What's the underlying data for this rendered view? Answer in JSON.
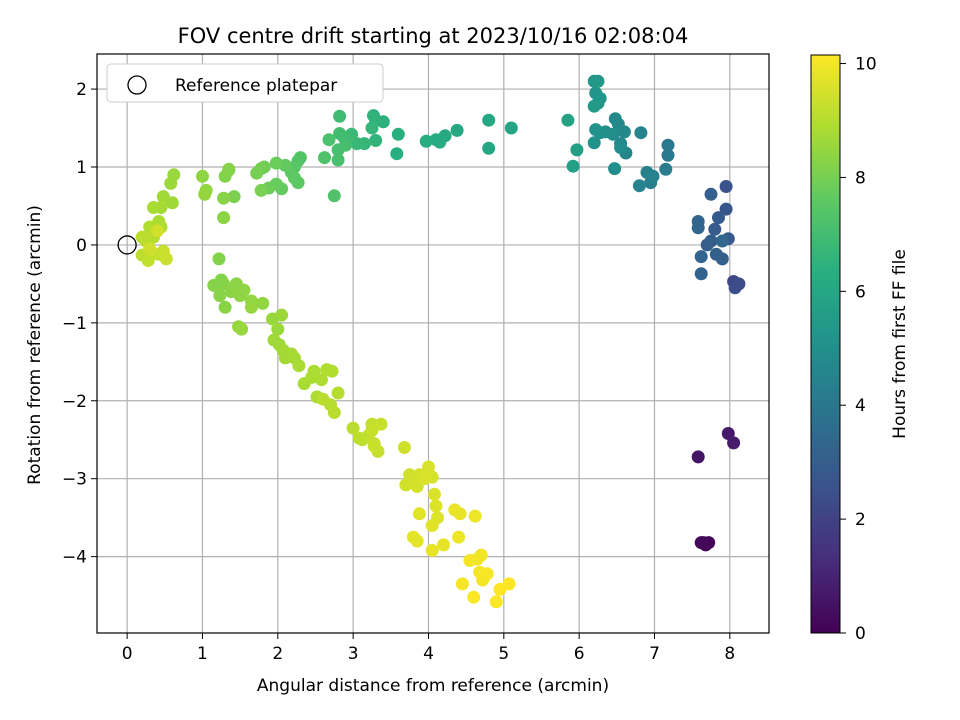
{
  "chart_data": {
    "type": "scatter",
    "title": "FOV centre drift starting at 2023/10/16 02:08:04",
    "xlabel": "Angular distance from reference (arcmin)",
    "ylabel": "Rotation from reference (arcmin)",
    "xlim": [
      -0.4,
      8.52
    ],
    "ylim": [
      -4.98,
      2.45
    ],
    "xticks": [
      0,
      1,
      2,
      3,
      4,
      5,
      6,
      7,
      8
    ],
    "yticks": [
      2,
      1,
      0,
      -1,
      -2,
      -3,
      -4
    ],
    "grid": true,
    "legend": {
      "position": "top-left",
      "entries": [
        "Reference platepar"
      ]
    },
    "reference_point": {
      "x": 0,
      "y": 0
    },
    "colorbar": {
      "label": "Hours from first FF file",
      "range": [
        0,
        10.15
      ],
      "ticks": [
        0,
        2,
        4,
        6,
        8,
        10
      ],
      "colormap": "viridis"
    },
    "series": [
      {
        "fields": [
          "x",
          "y",
          "hours"
        ],
        "points": [
          [
            7.65,
            -3.82,
            0.1
          ],
          [
            7.68,
            -3.85,
            0.1
          ],
          [
            7.72,
            -3.82,
            0.15
          ],
          [
            7.62,
            -3.82,
            0.2
          ],
          [
            7.58,
            -2.72,
            0.6
          ],
          [
            7.98,
            -2.42,
            0.7
          ],
          [
            8.05,
            -2.54,
            0.75
          ],
          [
            8.05,
            -0.47,
            2.2
          ],
          [
            8.12,
            -0.5,
            2.3
          ],
          [
            8.07,
            -0.55,
            2.35
          ],
          [
            7.95,
            0.75,
            2.6
          ],
          [
            7.95,
            0.46,
            2.7
          ],
          [
            7.98,
            0.08,
            2.8
          ],
          [
            7.85,
            0.35,
            2.85
          ],
          [
            7.8,
            0.2,
            2.9
          ],
          [
            7.75,
            0.05,
            2.95
          ],
          [
            7.7,
            0.0,
            3.0
          ],
          [
            7.75,
            0.65,
            3.05
          ],
          [
            7.82,
            -0.12,
            3.1
          ],
          [
            7.9,
            -0.18,
            3.15
          ],
          [
            7.62,
            -0.37,
            3.2
          ],
          [
            7.62,
            -0.15,
            3.25
          ],
          [
            7.58,
            0.3,
            3.3
          ],
          [
            7.58,
            0.22,
            3.35
          ],
          [
            7.9,
            0.05,
            3.4
          ],
          [
            7.18,
            1.28,
            4.0
          ],
          [
            7.18,
            1.15,
            4.1
          ],
          [
            7.15,
            0.97,
            4.2
          ],
          [
            6.95,
            0.8,
            4.3
          ],
          [
            6.9,
            0.93,
            4.4
          ],
          [
            6.98,
            0.88,
            4.45
          ],
          [
            6.8,
            0.76,
            4.5
          ],
          [
            6.82,
            1.44,
            4.55
          ],
          [
            6.62,
            1.18,
            4.6
          ],
          [
            6.55,
            1.3,
            4.65
          ],
          [
            6.6,
            1.45,
            4.7
          ],
          [
            6.52,
            1.55,
            4.75
          ],
          [
            6.48,
            1.62,
            4.8
          ],
          [
            6.55,
            1.25,
            4.85
          ],
          [
            6.45,
            1.42,
            4.9
          ],
          [
            6.47,
            0.98,
            4.95
          ],
          [
            6.35,
            1.45,
            5.0
          ],
          [
            6.28,
            1.44,
            5.05
          ],
          [
            6.22,
            1.48,
            5.1
          ],
          [
            6.2,
            1.31,
            5.15
          ],
          [
            6.25,
            1.82,
            5.2
          ],
          [
            6.22,
            1.95,
            5.25
          ],
          [
            6.28,
            1.88,
            5.3
          ],
          [
            6.2,
            2.1,
            5.35
          ],
          [
            6.25,
            2.1,
            5.4
          ],
          [
            6.2,
            1.78,
            5.45
          ],
          [
            5.97,
            1.22,
            5.7
          ],
          [
            5.92,
            1.01,
            5.75
          ],
          [
            5.85,
            1.6,
            5.8
          ],
          [
            5.1,
            1.5,
            5.95
          ],
          [
            4.8,
            1.6,
            6.0
          ],
          [
            4.8,
            1.24,
            6.05
          ],
          [
            4.38,
            1.47,
            6.1
          ],
          [
            4.22,
            1.4,
            6.15
          ],
          [
            4.15,
            1.32,
            6.2
          ],
          [
            4.1,
            1.35,
            6.25
          ],
          [
            3.97,
            1.33,
            6.3
          ],
          [
            3.58,
            1.17,
            6.35
          ],
          [
            3.6,
            1.42,
            6.4
          ],
          [
            3.4,
            1.58,
            6.45
          ],
          [
            3.3,
            1.6,
            6.5
          ],
          [
            3.27,
            1.66,
            6.55
          ],
          [
            3.3,
            1.34,
            6.6
          ],
          [
            3.25,
            1.5,
            6.65
          ],
          [
            3.15,
            1.3,
            6.7
          ],
          [
            3.05,
            1.3,
            6.75
          ],
          [
            2.98,
            1.42,
            6.8
          ],
          [
            2.92,
            1.35,
            6.85
          ],
          [
            2.88,
            1.38,
            6.9
          ],
          [
            2.82,
            1.65,
            6.95
          ],
          [
            2.82,
            1.43,
            7.0
          ],
          [
            2.9,
            1.28,
            7.05
          ],
          [
            2.8,
            1.22,
            7.1
          ],
          [
            2.8,
            1.09,
            7.15
          ],
          [
            2.68,
            1.35,
            7.2
          ],
          [
            2.62,
            1.12,
            7.25
          ],
          [
            2.75,
            0.63,
            7.3
          ],
          [
            2.3,
            1.12,
            7.35
          ],
          [
            2.27,
            1.08,
            7.4
          ],
          [
            2.22,
            1.0,
            7.45
          ],
          [
            2.18,
            0.93,
            7.5
          ],
          [
            2.27,
            0.8,
            7.55
          ],
          [
            2.22,
            0.86,
            7.6
          ],
          [
            2.1,
            1.02,
            7.65
          ],
          [
            2.05,
            0.72,
            7.7
          ],
          [
            1.98,
            0.78,
            7.75
          ],
          [
            1.98,
            1.05,
            7.8
          ],
          [
            1.88,
            0.73,
            7.85
          ],
          [
            1.82,
            1.0,
            7.9
          ],
          [
            1.78,
            0.98,
            7.95
          ],
          [
            1.72,
            0.92,
            8.0
          ],
          [
            1.78,
            0.7,
            8.05
          ],
          [
            1.42,
            0.62,
            8.1
          ],
          [
            1.35,
            0.96,
            8.15
          ],
          [
            1.3,
            0.88,
            8.2
          ],
          [
            1.35,
            0.97,
            8.25
          ],
          [
            1.28,
            0.6,
            8.3
          ],
          [
            1.28,
            0.35,
            8.35
          ],
          [
            1.0,
            0.88,
            8.4
          ],
          [
            1.05,
            0.7,
            8.45
          ],
          [
            1.03,
            0.65,
            8.5
          ],
          [
            0.62,
            0.9,
            8.55
          ],
          [
            0.58,
            0.79,
            8.6
          ],
          [
            0.6,
            0.54,
            8.65
          ],
          [
            0.48,
            0.62,
            8.7
          ],
          [
            0.45,
            0.48,
            8.75
          ],
          [
            0.35,
            0.48,
            8.8
          ],
          [
            0.42,
            0.3,
            8.85
          ],
          [
            0.45,
            0.23,
            8.9
          ],
          [
            0.3,
            0.23,
            8.95
          ],
          [
            0.35,
            0.1,
            9.0
          ],
          [
            0.25,
            0.05,
            9.05
          ],
          [
            0.2,
            0.1,
            9.1
          ],
          [
            0.2,
            -0.13,
            9.15
          ],
          [
            0.28,
            -0.2,
            9.2
          ],
          [
            0.42,
            -0.12,
            9.25
          ],
          [
            0.48,
            -0.08,
            9.3
          ],
          [
            0.52,
            -0.18,
            9.35
          ],
          [
            0.3,
            -0.05,
            9.4
          ],
          [
            0.4,
            0.18,
            9.45
          ],
          [
            1.22,
            -0.18,
            8.2
          ],
          [
            1.25,
            -0.45,
            8.2
          ],
          [
            1.28,
            -0.5,
            8.25
          ],
          [
            1.15,
            -0.52,
            8.25
          ],
          [
            1.23,
            -0.65,
            8.3
          ],
          [
            1.3,
            -0.8,
            8.3
          ],
          [
            1.38,
            -0.6,
            8.35
          ],
          [
            1.45,
            -0.5,
            8.35
          ],
          [
            1.5,
            -0.65,
            8.4
          ],
          [
            1.55,
            -0.58,
            8.4
          ],
          [
            1.65,
            -0.72,
            8.45
          ],
          [
            1.8,
            -0.75,
            8.45
          ],
          [
            1.65,
            -0.8,
            8.5
          ],
          [
            1.48,
            -1.05,
            8.5
          ],
          [
            1.52,
            -1.08,
            8.55
          ],
          [
            1.93,
            -0.95,
            8.55
          ],
          [
            2.05,
            -0.9,
            8.6
          ],
          [
            2.0,
            -1.08,
            8.6
          ],
          [
            1.95,
            -1.22,
            8.65
          ],
          [
            2.02,
            -1.28,
            8.65
          ],
          [
            2.07,
            -1.35,
            8.7
          ],
          [
            2.1,
            -1.45,
            8.7
          ],
          [
            2.18,
            -1.4,
            8.75
          ],
          [
            2.22,
            -1.45,
            8.75
          ],
          [
            2.28,
            -1.55,
            8.8
          ],
          [
            2.35,
            -1.78,
            8.8
          ],
          [
            2.48,
            -1.62,
            8.85
          ],
          [
            2.45,
            -1.7,
            8.85
          ],
          [
            2.52,
            -1.95,
            8.9
          ],
          [
            2.58,
            -1.73,
            8.9
          ],
          [
            2.65,
            -1.6,
            8.95
          ],
          [
            2.72,
            -1.62,
            8.95
          ],
          [
            2.8,
            -1.9,
            9.0
          ],
          [
            2.7,
            -2.05,
            9.0
          ],
          [
            2.75,
            -2.15,
            9.05
          ],
          [
            2.6,
            -1.98,
            9.05
          ],
          [
            3.0,
            -2.35,
            9.1
          ],
          [
            3.08,
            -2.48,
            9.15
          ],
          [
            3.12,
            -2.5,
            9.15
          ],
          [
            3.2,
            -2.45,
            9.2
          ],
          [
            3.25,
            -2.3,
            9.2
          ],
          [
            3.28,
            -2.55,
            9.25
          ],
          [
            3.33,
            -2.65,
            9.25
          ],
          [
            3.28,
            -2.58,
            9.3
          ],
          [
            3.37,
            -2.3,
            9.3
          ],
          [
            3.25,
            -2.38,
            9.3
          ],
          [
            3.68,
            -2.6,
            9.4
          ],
          [
            3.75,
            -2.95,
            9.4
          ],
          [
            3.7,
            -3.08,
            9.45
          ],
          [
            3.8,
            -3.0,
            9.45
          ],
          [
            3.85,
            -3.1,
            9.5
          ],
          [
            3.88,
            -2.95,
            9.5
          ],
          [
            4.0,
            -2.85,
            9.55
          ],
          [
            4.05,
            -2.98,
            9.55
          ],
          [
            3.95,
            -3.0,
            9.6
          ],
          [
            4.08,
            -3.2,
            9.6
          ],
          [
            4.1,
            -3.35,
            9.65
          ],
          [
            4.12,
            -3.5,
            9.65
          ],
          [
            4.05,
            -3.6,
            9.7
          ],
          [
            3.88,
            -3.45,
            9.7
          ],
          [
            3.8,
            -3.75,
            9.75
          ],
          [
            3.85,
            -3.8,
            9.75
          ],
          [
            4.05,
            -3.92,
            9.8
          ],
          [
            4.2,
            -3.85,
            9.8
          ],
          [
            4.35,
            -3.4,
            9.85
          ],
          [
            4.42,
            -3.45,
            9.85
          ],
          [
            4.62,
            -3.48,
            9.9
          ],
          [
            4.4,
            -3.75,
            9.9
          ],
          [
            4.65,
            -4.03,
            9.95
          ],
          [
            4.7,
            -3.98,
            9.95
          ],
          [
            4.68,
            -4.2,
            10.0
          ],
          [
            4.72,
            -4.3,
            10.0
          ],
          [
            4.78,
            -4.22,
            10.05
          ],
          [
            4.45,
            -4.35,
            10.05
          ],
          [
            4.6,
            -4.52,
            10.1
          ],
          [
            4.9,
            -4.58,
            10.1
          ],
          [
            4.95,
            -4.42,
            10.15
          ],
          [
            5.07,
            -4.35,
            10.15
          ],
          [
            4.55,
            -4.05,
            10.0
          ]
        ]
      }
    ]
  }
}
